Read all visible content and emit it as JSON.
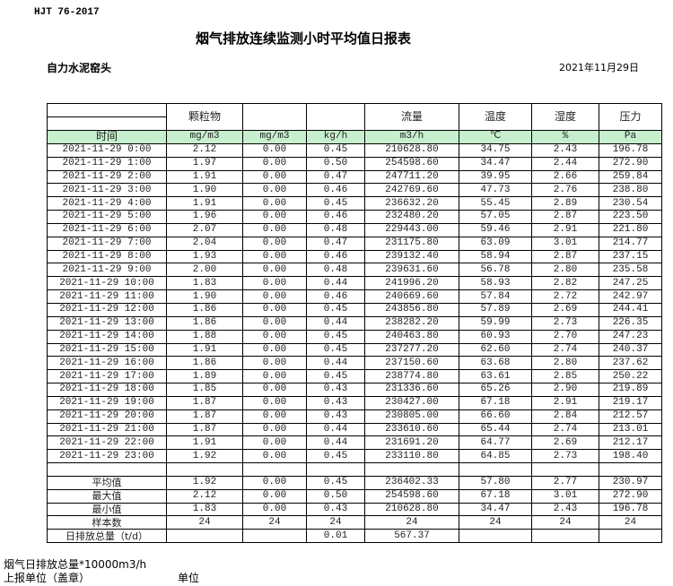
{
  "header": {
    "standard": "HJT 76-2017",
    "title": "烟气排放连续监测小时平均值日报表",
    "company": "自力水泥窑头",
    "date": "2021年11月29日"
  },
  "columns": [
    "",
    "颗粒物",
    "",
    "",
    "流量",
    "温度",
    "湿度",
    "压力"
  ],
  "units": [
    "时间",
    "mg/m3",
    "mg/m3",
    "kg/h",
    "m3/h",
    "℃",
    "%",
    "Pa"
  ],
  "rows": [
    [
      "2021-11-29 0:00",
      "2.12",
      "0.00",
      "0.45",
      "210628.80",
      "34.75",
      "2.43",
      "196.78"
    ],
    [
      "2021-11-29 1:00",
      "1.97",
      "0.00",
      "0.50",
      "254598.60",
      "34.47",
      "2.44",
      "272.90"
    ],
    [
      "2021-11-29 2:00",
      "1.91",
      "0.00",
      "0.47",
      "247711.20",
      "39.95",
      "2.66",
      "259.84"
    ],
    [
      "2021-11-29 3:00",
      "1.90",
      "0.00",
      "0.46",
      "242769.60",
      "47.73",
      "2.76",
      "238.80"
    ],
    [
      "2021-11-29 4:00",
      "1.91",
      "0.00",
      "0.45",
      "236632.20",
      "55.45",
      "2.89",
      "230.54"
    ],
    [
      "2021-11-29 5:00",
      "1.96",
      "0.00",
      "0.46",
      "232480.20",
      "57.05",
      "2.87",
      "223.50"
    ],
    [
      "2021-11-29 6:00",
      "2.07",
      "0.00",
      "0.48",
      "229443.00",
      "59.46",
      "2.91",
      "221.80"
    ],
    [
      "2021-11-29 7:00",
      "2.04",
      "0.00",
      "0.47",
      "231175.80",
      "63.09",
      "3.01",
      "214.77"
    ],
    [
      "2021-11-29 8:00",
      "1.93",
      "0.00",
      "0.46",
      "239132.40",
      "58.94",
      "2.87",
      "237.15"
    ],
    [
      "2021-11-29 9:00",
      "2.00",
      "0.00",
      "0.48",
      "239631.60",
      "56.78",
      "2.80",
      "235.58"
    ],
    [
      "2021-11-29 10:00",
      "1.83",
      "0.00",
      "0.44",
      "241996.20",
      "58.93",
      "2.82",
      "247.25"
    ],
    [
      "2021-11-29 11:00",
      "1.90",
      "0.00",
      "0.46",
      "240669.60",
      "57.84",
      "2.72",
      "242.97"
    ],
    [
      "2021-11-29 12:00",
      "1.86",
      "0.00",
      "0.45",
      "243856.80",
      "57.89",
      "2.69",
      "244.41"
    ],
    [
      "2021-11-29 13:00",
      "1.86",
      "0.00",
      "0.44",
      "238282.20",
      "59.99",
      "2.73",
      "226.35"
    ],
    [
      "2021-11-29 14:00",
      "1.88",
      "0.00",
      "0.45",
      "240463.80",
      "60.93",
      "2.70",
      "247.23"
    ],
    [
      "2021-11-29 15:00",
      "1.91",
      "0.00",
      "0.45",
      "237277.20",
      "62.60",
      "2.74",
      "240.37"
    ],
    [
      "2021-11-29 16:00",
      "1.86",
      "0.00",
      "0.44",
      "237150.60",
      "63.68",
      "2.80",
      "237.62"
    ],
    [
      "2021-11-29 17:00",
      "1.89",
      "0.00",
      "0.45",
      "238774.80",
      "63.61",
      "2.85",
      "250.22"
    ],
    [
      "2021-11-29 18:00",
      "1.85",
      "0.00",
      "0.43",
      "231336.60",
      "65.26",
      "2.90",
      "219.89"
    ],
    [
      "2021-11-29 19:00",
      "1.87",
      "0.00",
      "0.43",
      "230427.00",
      "67.18",
      "2.91",
      "219.17"
    ],
    [
      "2021-11-29 20:00",
      "1.87",
      "0.00",
      "0.43",
      "230805.00",
      "66.60",
      "2.84",
      "212.57"
    ],
    [
      "2021-11-29 21:00",
      "1.87",
      "0.00",
      "0.44",
      "233610.60",
      "65.44",
      "2.74",
      "213.01"
    ],
    [
      "2021-11-29 22:00",
      "1.91",
      "0.00",
      "0.44",
      "231691.20",
      "64.77",
      "2.69",
      "212.17"
    ],
    [
      "2021-11-29 23:00",
      "1.92",
      "0.00",
      "0.45",
      "233110.80",
      "64.85",
      "2.73",
      "198.40"
    ]
  ],
  "stats": [
    [
      "平均值",
      "1.92",
      "0.00",
      "0.45",
      "236402.33",
      "57.80",
      "2.77",
      "230.97"
    ],
    [
      "最大值",
      "2.12",
      "0.00",
      "0.50",
      "254598.60",
      "67.18",
      "3.01",
      "272.90"
    ],
    [
      "最小值",
      "1.83",
      "0.00",
      "0.43",
      "210628.80",
      "34.47",
      "2.43",
      "196.78"
    ],
    [
      "样本数",
      "24",
      "24",
      "24",
      "24",
      "24",
      "24",
      "24"
    ],
    [
      "日排放总量（t/d）",
      "",
      "",
      "0.01",
      "567.37",
      "",
      "",
      ""
    ]
  ],
  "footer": {
    "note": "烟气日排放总量*10000m3/h",
    "reporter": "上报单位（盖章）",
    "unit": "单位"
  },
  "colors": {
    "unit_row_bg": "#c6efce"
  }
}
